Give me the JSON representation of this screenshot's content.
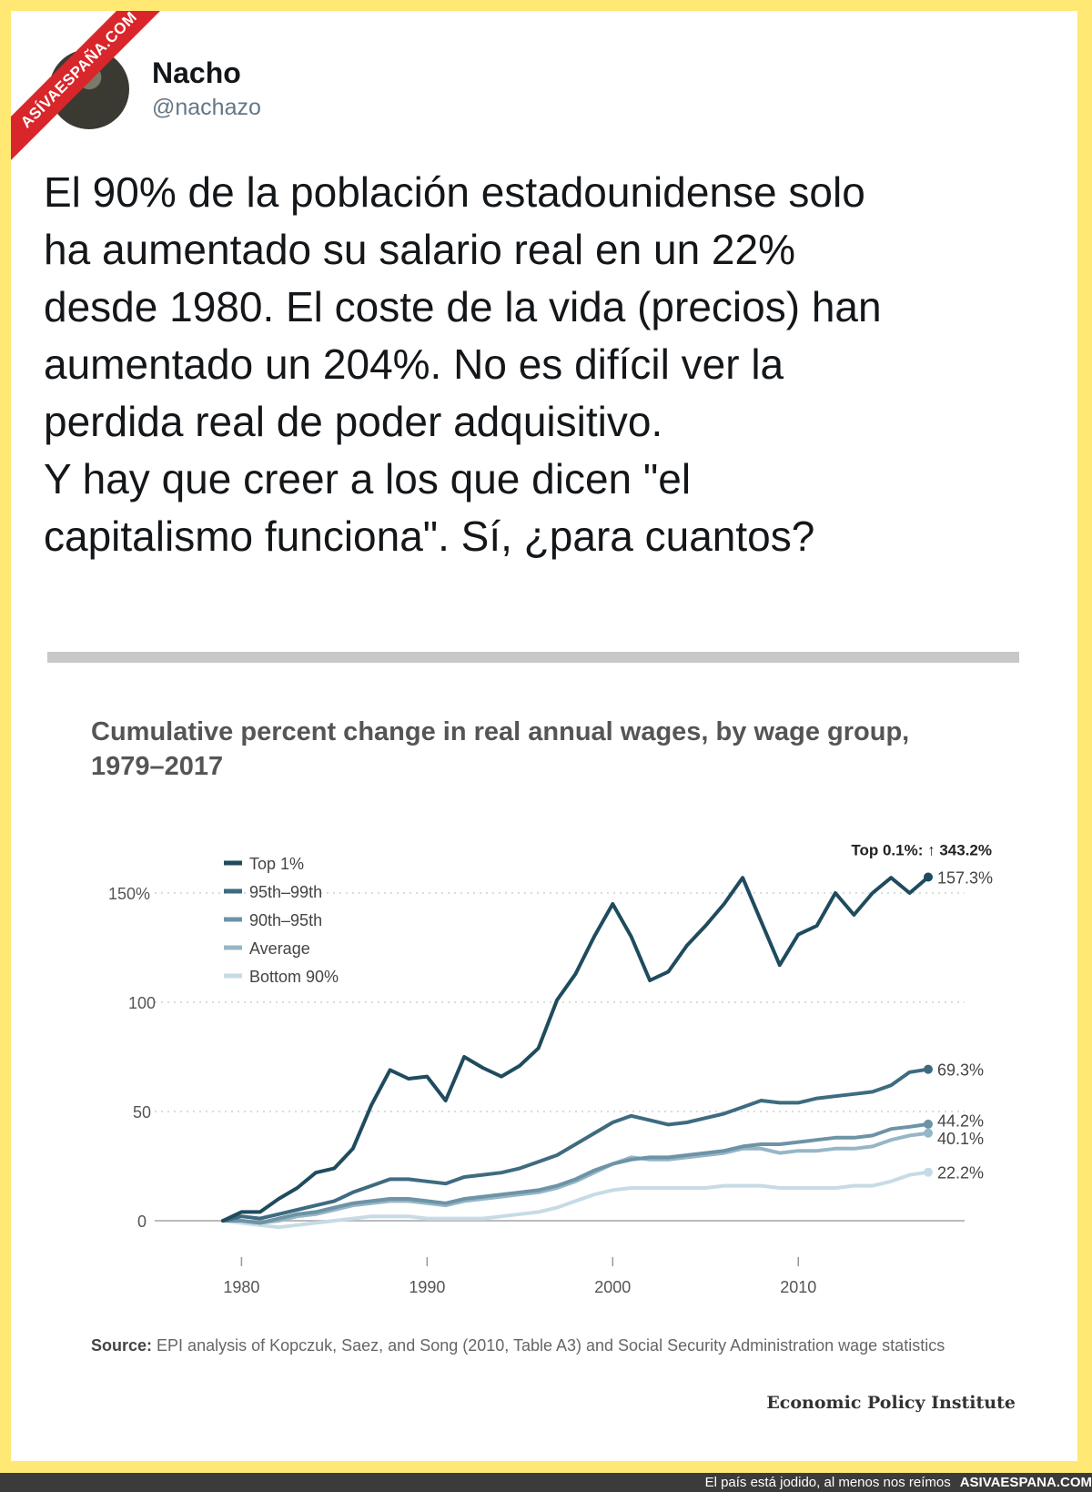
{
  "watermark": "ASÍVAESPAÑA.COM",
  "tweet": {
    "name": "Nacho",
    "handle": "@nachazo",
    "text": "El 90% de la población estadounidense solo\nha aumentado su salario real en un 22%\ndesde 1980. El coste de la vida (precios) han\naumentado un 204%. No es difícil ver la\nperdida real de poder adquisitivo.\nY hay que creer a los que dicen \"el\ncapitalismo funciona\". Sí, ¿para cuantos?"
  },
  "chart_data": {
    "type": "line",
    "title": "Cumulative percent change in real annual wages, by wage group, 1979–2017",
    "x": [
      1979,
      1980,
      1981,
      1982,
      1983,
      1984,
      1985,
      1986,
      1987,
      1988,
      1989,
      1990,
      1991,
      1992,
      1993,
      1994,
      1995,
      1996,
      1997,
      1998,
      1999,
      2000,
      2001,
      2002,
      2003,
      2004,
      2005,
      2006,
      2007,
      2008,
      2009,
      2010,
      2011,
      2012,
      2013,
      2014,
      2015,
      2016,
      2017
    ],
    "xticks": [
      "1980",
      "1990",
      "2000",
      "2010"
    ],
    "yticks": [
      "0",
      "50",
      "100",
      "150%"
    ],
    "ylim": [
      0,
      160
    ],
    "series": [
      {
        "name": "Top 1%",
        "color": "#1f4b5e",
        "end_label": "157.3%",
        "values": [
          0,
          4,
          4,
          10,
          15,
          22,
          24,
          33,
          53,
          69,
          65,
          66,
          55,
          75,
          70,
          66,
          71,
          79,
          101,
          113,
          130,
          145,
          130,
          110,
          114,
          126,
          135,
          145,
          157,
          137,
          117,
          131,
          135,
          150,
          140,
          150,
          157,
          150,
          157.3
        ]
      },
      {
        "name": "95th–99th",
        "color": "#3e6b80",
        "end_label": "69.3%",
        "values": [
          0,
          2,
          1,
          3,
          5,
          7,
          9,
          13,
          16,
          19,
          19,
          18,
          17,
          20,
          21,
          22,
          24,
          27,
          30,
          35,
          40,
          45,
          48,
          46,
          44,
          45,
          47,
          49,
          52,
          55,
          54,
          54,
          56,
          57,
          58,
          59,
          62,
          68,
          69.3
        ]
      },
      {
        "name": "90th–95th",
        "color": "#6d93a6",
        "end_label": "44.2%",
        "values": [
          0,
          0,
          -1,
          1,
          3,
          4,
          6,
          8,
          9,
          10,
          10,
          9,
          8,
          10,
          11,
          12,
          13,
          14,
          16,
          19,
          23,
          26,
          28,
          29,
          29,
          30,
          31,
          32,
          34,
          35,
          35,
          36,
          37,
          38,
          38,
          39,
          42,
          43,
          44.2
        ]
      },
      {
        "name": "Average",
        "color": "#96b6c6",
        "end_label": "40.1%",
        "values": [
          0,
          0,
          -1,
          0,
          2,
          3,
          5,
          7,
          8,
          9,
          9,
          8,
          7,
          9,
          10,
          11,
          12,
          13,
          15,
          18,
          22,
          26,
          29,
          28,
          28,
          29,
          30,
          31,
          33,
          33,
          31,
          32,
          32,
          33,
          33,
          34,
          37,
          39,
          40.1
        ]
      },
      {
        "name": "Bottom 90%",
        "color": "#c6dbe6",
        "end_label": "22.2%",
        "values": [
          0,
          -1,
          -2,
          -3,
          -2,
          -1,
          0,
          1,
          2,
          2,
          2,
          1,
          1,
          1,
          1,
          2,
          3,
          4,
          6,
          9,
          12,
          14,
          15,
          15,
          15,
          15,
          15,
          16,
          16,
          16,
          15,
          15,
          15,
          15,
          16,
          16,
          18,
          21,
          22.2
        ]
      }
    ],
    "annotation": "Top 0.1%: ↑ 343.2%",
    "legend_position": "top-left",
    "grid": "dotted horizontal",
    "source_label": "Source:",
    "source": "EPI analysis of Kopczuk, Saez, and Song (2010, Table A3) and Social Security Administration wage statistics",
    "brand": "Economic Policy Institute"
  },
  "footer": {
    "caption": "El país está jodido, al menos nos reímos",
    "site": "ASIVAESPANA.COM"
  }
}
